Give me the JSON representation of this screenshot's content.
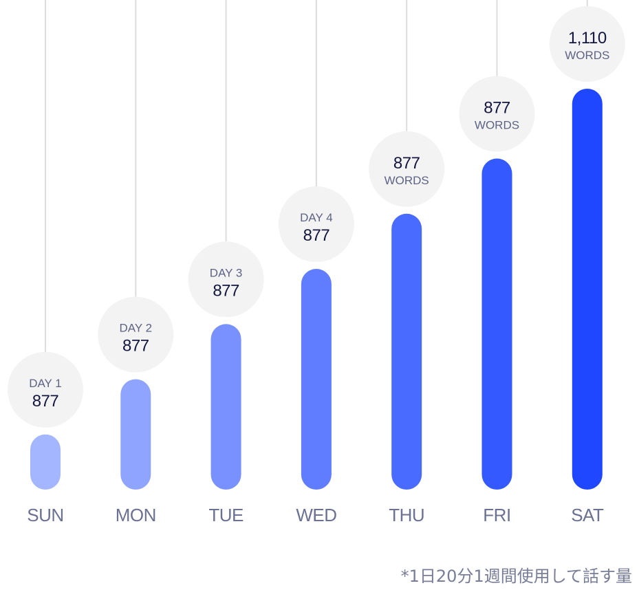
{
  "chart_data": {
    "type": "bar",
    "categories": [
      "SUN",
      "MON",
      "TUE",
      "WED",
      "THU",
      "FRI",
      "SAT"
    ],
    "values": [
      877,
      1754,
      2631,
      3508,
      4385,
      5262,
      6372
    ],
    "ylim": [
      0,
      6800
    ],
    "grid": false,
    "bubbles": [
      {
        "top": "DAY 1",
        "main": "877",
        "sub": ""
      },
      {
        "top": "DAY 2",
        "main": "877",
        "sub": ""
      },
      {
        "top": "DAY 3",
        "main": "877",
        "sub": ""
      },
      {
        "top": "DAY 4",
        "main": "877",
        "sub": ""
      },
      {
        "top": "",
        "main": "877",
        "sub": "WORDS"
      },
      {
        "top": "",
        "main": "877",
        "sub": "WORDS"
      },
      {
        "top": "",
        "main": "1,110",
        "sub": "WORDS"
      }
    ],
    "colors": [
      "#a3b6ff",
      "#8ea4ff",
      "#7891ff",
      "#607dff",
      "#4a6bff",
      "#3459ff",
      "#1e47ff"
    ],
    "bubble_color": "#f3f3f3",
    "line_color": "#dddddd",
    "label_color": "#6b7193"
  },
  "footnote": "*1日20分1週間使用して話す量"
}
